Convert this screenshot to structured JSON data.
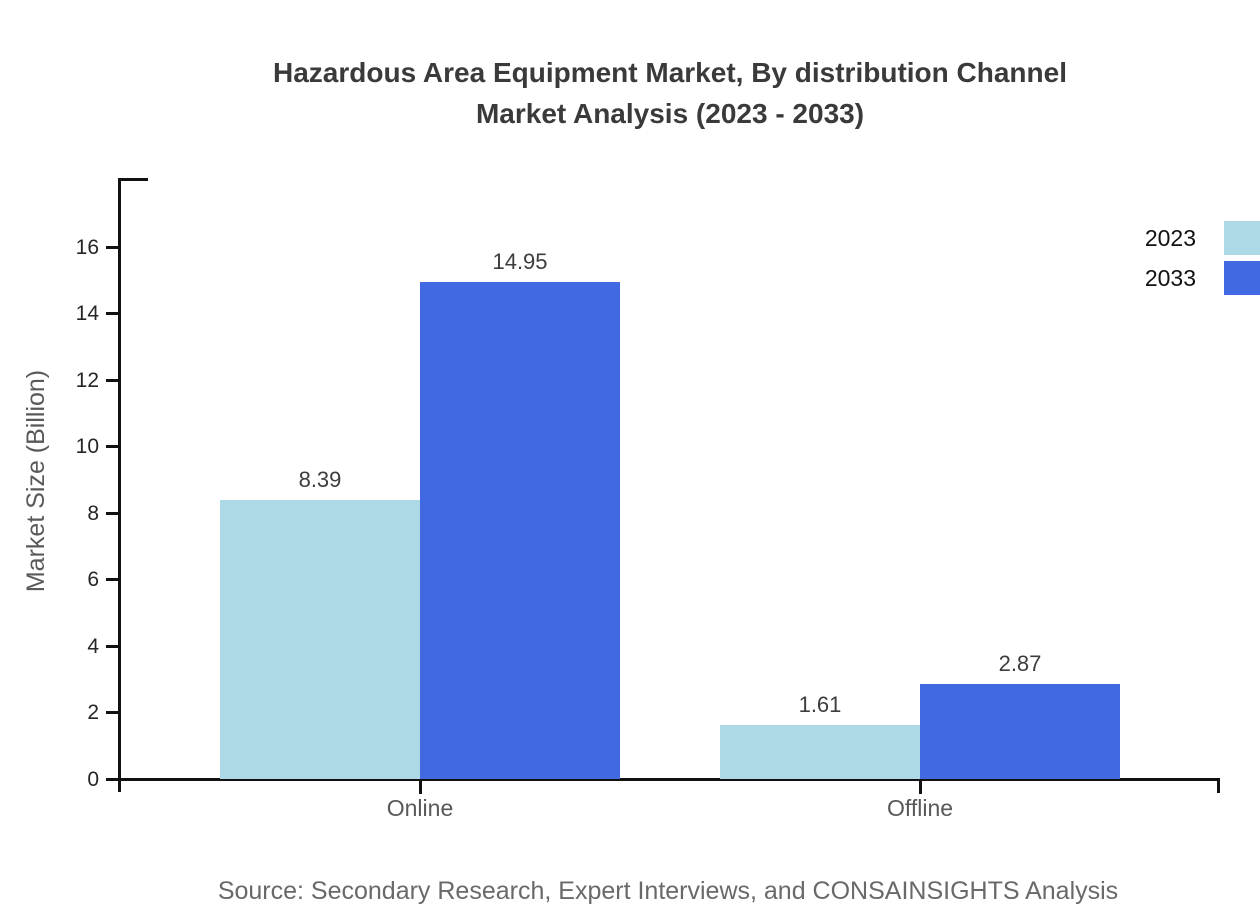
{
  "page": {
    "background": "#ffffff"
  },
  "chart_data": {
    "type": "bar",
    "title_line1": "Hazardous Area Equipment Market, By distribution Channel",
    "title_line2": "Market Analysis (2023 - 2033)",
    "categories": [
      "Online",
      "Offline"
    ],
    "series": [
      {
        "name": "2023",
        "color": "#ADD8E6",
        "values": [
          8.39,
          1.61
        ]
      },
      {
        "name": "2033",
        "color": "#4169E1",
        "values": [
          14.95,
          2.87
        ]
      }
    ],
    "value_labels": [
      [
        "8.39",
        "1.61"
      ],
      [
        "14.95",
        "2.87"
      ]
    ],
    "xlabel": "",
    "ylabel": "Market Size (Billion)",
    "ylim": [
      0,
      18
    ],
    "yticks": [
      0,
      2,
      4,
      6,
      8,
      10,
      12,
      14,
      16
    ],
    "grid": false,
    "legend_position": "top-right",
    "source": "Source: Secondary Research, Expert Interviews, and CONSAINSIGHTS Analysis"
  },
  "colors": {
    "axis": "#111111",
    "title_text": "#3a3a3a",
    "tick_label": "#262626",
    "category_label": "#595959",
    "value_label": "#3d3d3d",
    "y_axis_title": "#595959",
    "legend_text": "#111111",
    "source_text": "#696969",
    "series_2023": "#ADD8E6",
    "series_2033": "#4169E1"
  }
}
